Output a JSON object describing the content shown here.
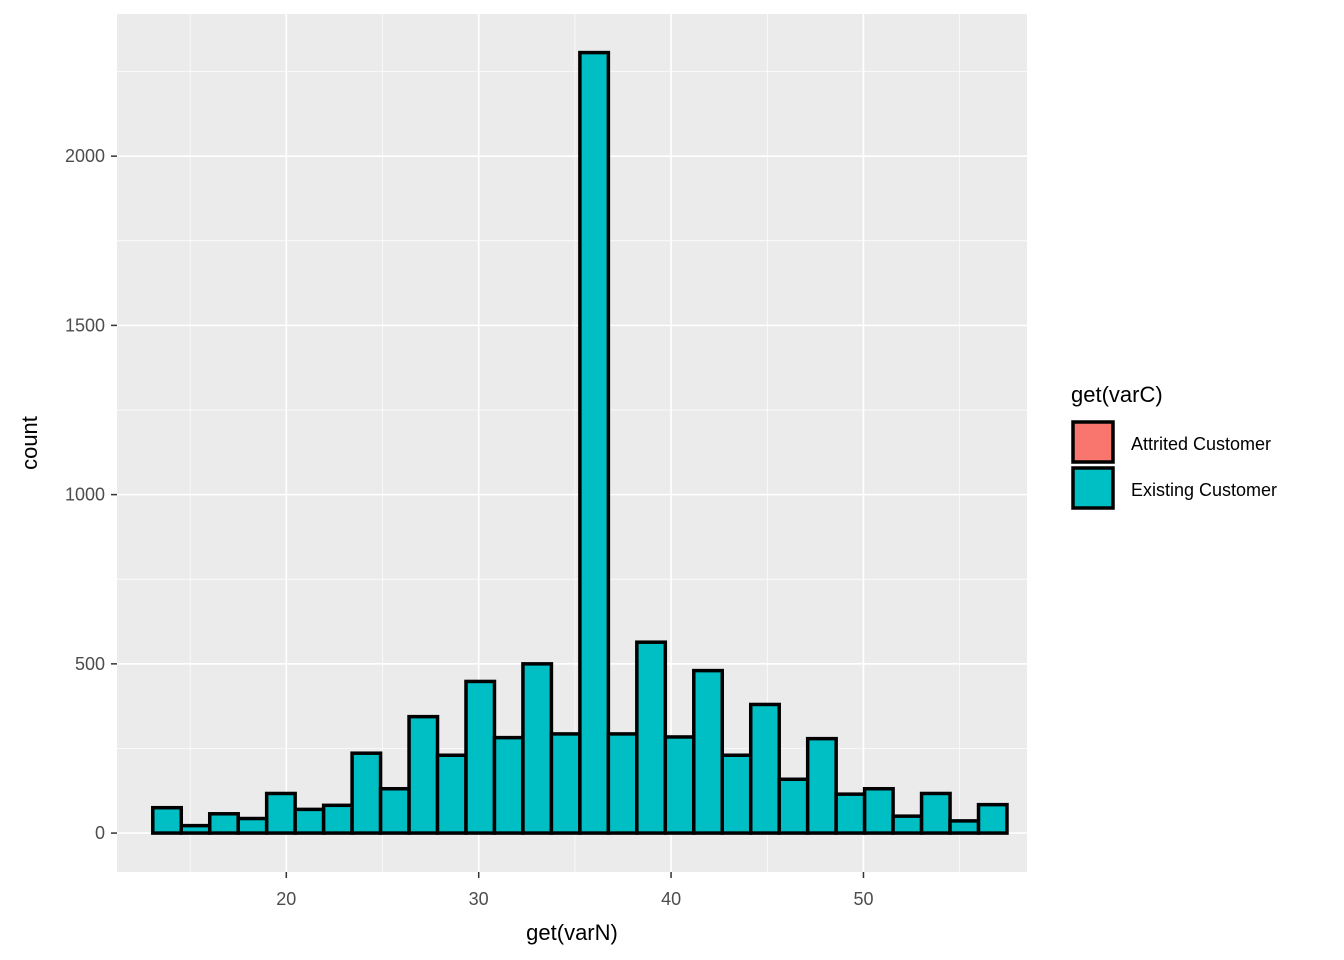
{
  "chart_data": {
    "type": "bar",
    "subtype": "histogram",
    "title": "",
    "xlabel": "get(varN)",
    "ylabel": "count",
    "xlim": [
      11.2,
      58.5
    ],
    "ylim": [
      -115,
      2420
    ],
    "bin_width": 1.48,
    "x": [
      13.8,
      15.28,
      16.76,
      18.24,
      19.72,
      21.2,
      22.68,
      24.16,
      25.64,
      27.12,
      28.6,
      30.08,
      31.56,
      33.04,
      34.52,
      36.0,
      37.48,
      38.96,
      40.44,
      41.92,
      43.4,
      44.88,
      46.36,
      47.84,
      49.32,
      50.8,
      52.28,
      53.76,
      55.24,
      56.72
    ],
    "x_ticks": [
      20,
      30,
      40,
      50
    ],
    "x_tick_labels": [
      "20",
      "30",
      "40",
      "50"
    ],
    "y_ticks": [
      0,
      500,
      1000,
      1500,
      2000
    ],
    "y_tick_labels": [
      "0",
      "500",
      "1000",
      "1500",
      "2000"
    ],
    "grid": true,
    "series": [
      {
        "name": "Attrited Customer",
        "color": "#F8766D",
        "values": [
          0,
          0,
          0,
          0,
          0,
          0,
          0,
          0,
          0,
          0,
          0,
          0,
          0,
          0,
          0,
          0,
          0,
          0,
          0,
          0,
          0,
          0,
          0,
          0,
          0,
          0,
          0,
          0,
          0,
          0
        ]
      },
      {
        "name": "Existing Customer",
        "color": "#00BFC4",
        "values": [
          75,
          22,
          57,
          43,
          117,
          70,
          82,
          236,
          131,
          344,
          230,
          448,
          282,
          500,
          293,
          2306,
          293,
          564,
          284,
          480,
          230,
          380,
          159,
          279,
          115,
          131,
          50,
          117,
          36,
          84
        ]
      }
    ],
    "legend": {
      "title": "get(varC)",
      "position": "right"
    }
  },
  "colors": {
    "panel_background": "#EBEBEB",
    "grid_line": "#FFFFFF",
    "bar_outline": "#000000"
  }
}
